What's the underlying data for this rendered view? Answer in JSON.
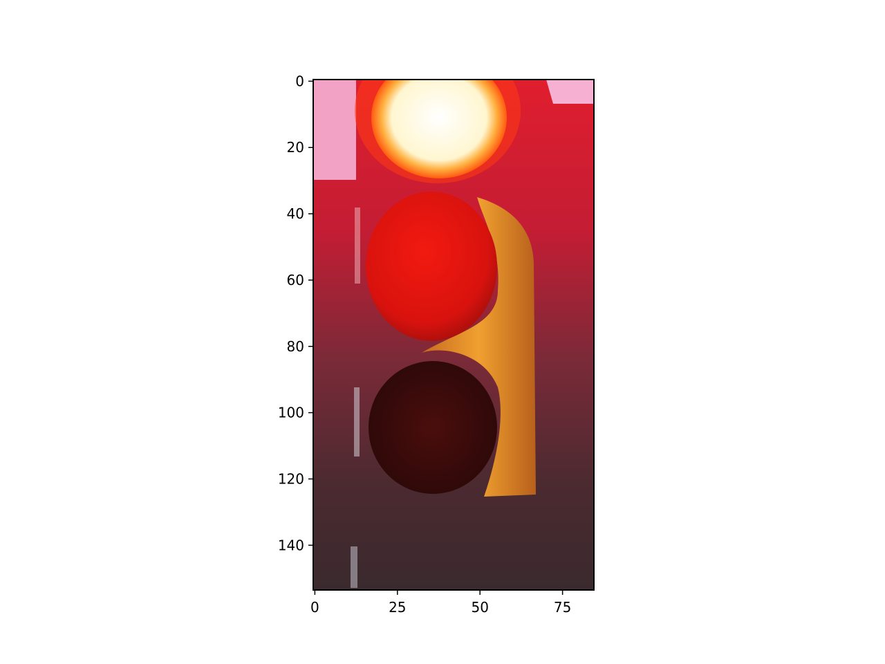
{
  "chart_data": {
    "type": "image",
    "image_extent": {
      "width": 85,
      "height": 154
    },
    "xlim": [
      -0.5,
      84.5
    ],
    "ylim": [
      153.5,
      -0.5
    ],
    "x_ticks": [
      0,
      25,
      50,
      75
    ],
    "y_ticks": [
      0,
      20,
      40,
      60,
      80,
      100,
      120,
      140
    ],
    "x_tick_labels": [
      "0",
      "25",
      "50",
      "75"
    ],
    "y_tick_labels": [
      "0",
      "20",
      "40",
      "60",
      "80",
      "100",
      "120",
      "140"
    ],
    "grid": false,
    "title": "",
    "xlabel": "",
    "ylabel": "",
    "image_content": {
      "subject": "traffic light with illuminated top lamp",
      "colors": {
        "background_top": "#d6203a",
        "background_bottom": "#3a2a2e",
        "pink_patch": "#f4a6c8",
        "top_lamp_core": "#fffbe8",
        "top_lamp_glow": "#ff7a1a",
        "middle_lamp": "#e5140e",
        "housing_glow": "#e0902a",
        "bottom_lamp": "#3a0a0a"
      }
    }
  }
}
